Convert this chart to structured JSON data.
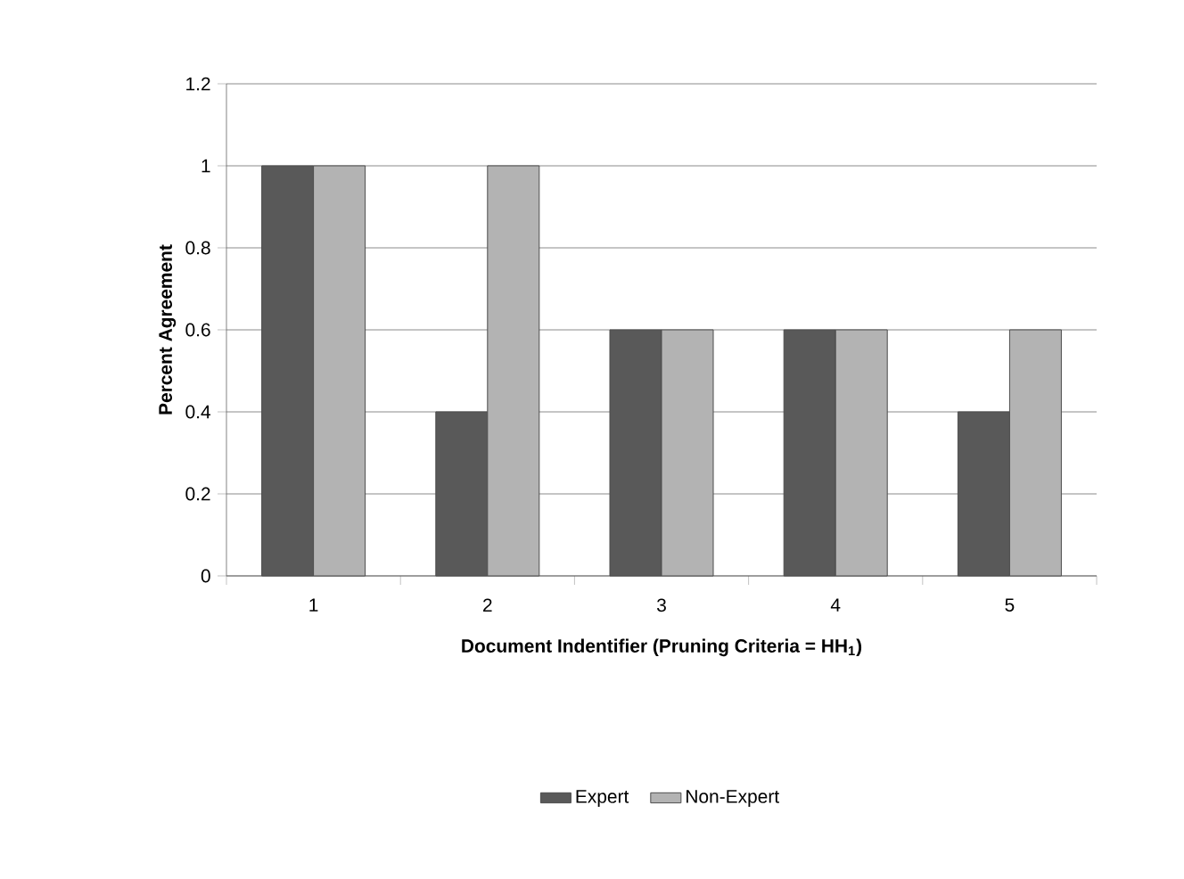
{
  "chart_data": {
    "type": "bar",
    "xlabel": "Document Indentifier (Pruning Criteria = HH$_{1}$)",
    "ylabel": "Percent Agreement",
    "categories": [
      "1",
      "2",
      "3",
      "4",
      "5"
    ],
    "series": [
      {
        "name": "Expert",
        "color": "#595959",
        "values": [
          1,
          0.4,
          0.6,
          0.6,
          0.4
        ]
      },
      {
        "name": "Non-Expert",
        "color": "#b3b3b3",
        "values": [
          1,
          1,
          0.6,
          0.6,
          0.6
        ]
      }
    ],
    "ylim": [
      0,
      1.2
    ],
    "yticks": [
      0,
      0.2,
      0.4,
      0.6,
      0.8,
      1,
      1.2
    ],
    "grid": "y",
    "legend": "bottom"
  }
}
